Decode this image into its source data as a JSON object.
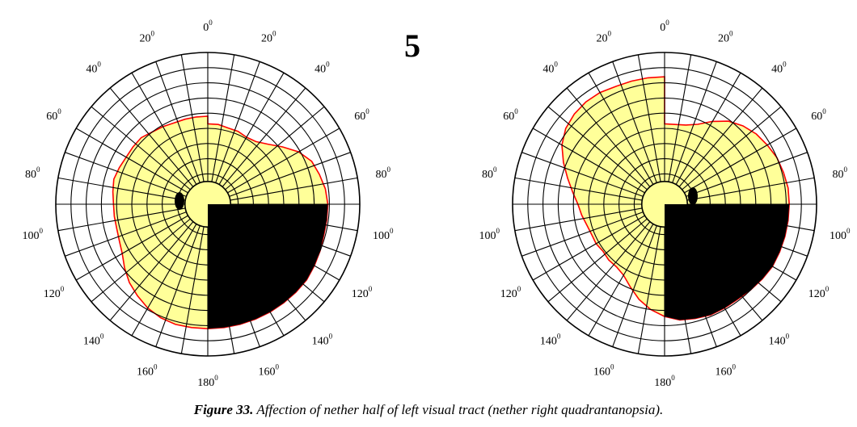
{
  "panel_number": "5",
  "caption": {
    "label": "Figure 33.",
    "text": " Affection of nether half of left visual tract (nether right quadrantanopsia)."
  },
  "angle_labels": [
    {
      "deg": 0,
      "text": "0",
      "sup": "0"
    },
    {
      "deg": 20,
      "text": "20",
      "sup": "0"
    },
    {
      "deg": 40,
      "text": "40",
      "sup": "0"
    },
    {
      "deg": 60,
      "text": "60",
      "sup": "0"
    },
    {
      "deg": 80,
      "text": "80",
      "sup": "0"
    },
    {
      "deg": 100,
      "text": "100",
      "sup": "0"
    },
    {
      "deg": 120,
      "text": "120",
      "sup": "0"
    },
    {
      "deg": 140,
      "text": "140",
      "sup": "0"
    },
    {
      "deg": 160,
      "text": "160",
      "sup": "0"
    },
    {
      "deg": 180,
      "text": "180",
      "sup": "0"
    }
  ],
  "colors": {
    "field": "#ffff99",
    "field_outline": "#ff0000",
    "grid": "#000000",
    "defect": "#000000",
    "background": "#ffffff"
  },
  "eyes": [
    {
      "name": "left-eye",
      "field_radii": [
        0.53,
        0.53,
        0.52,
        0.52,
        0.51,
        0.52,
        0.56,
        0.62,
        0.69,
        0.74,
        0.76,
        0.78,
        0.79,
        0.79,
        0.79,
        0.8,
        0.81,
        0.82,
        0.82,
        0.82,
        0.82,
        0.82,
        0.82,
        0.82,
        0.82,
        0.82,
        0.82,
        0.81,
        0.79,
        0.76,
        0.73,
        0.69,
        0.65,
        0.63,
        0.62,
        0.62,
        0.62,
        0.63,
        0.64,
        0.63,
        0.62,
        0.62,
        0.62,
        0.6,
        0.59,
        0.58,
        0.58,
        0.58,
        0.58
      ],
      "blind_spot_side": "left",
      "defect": "lower-right"
    },
    {
      "name": "right-eye",
      "field_radii": [
        0.53,
        0.53,
        0.54,
        0.57,
        0.63,
        0.69,
        0.73,
        0.76,
        0.78,
        0.8,
        0.81,
        0.82,
        0.82,
        0.82,
        0.82,
        0.82,
        0.82,
        0.81,
        0.8,
        0.79,
        0.79,
        0.79,
        0.78,
        0.77,
        0.74,
        0.7,
        0.65,
        0.59,
        0.54,
        0.52,
        0.52,
        0.51,
        0.52,
        0.52,
        0.53,
        0.55,
        0.57,
        0.61,
        0.66,
        0.72,
        0.78,
        0.82,
        0.84,
        0.85,
        0.85,
        0.84,
        0.84,
        0.84,
        0.84
      ],
      "blind_spot_side": "right",
      "defect": "lower-right"
    }
  ]
}
